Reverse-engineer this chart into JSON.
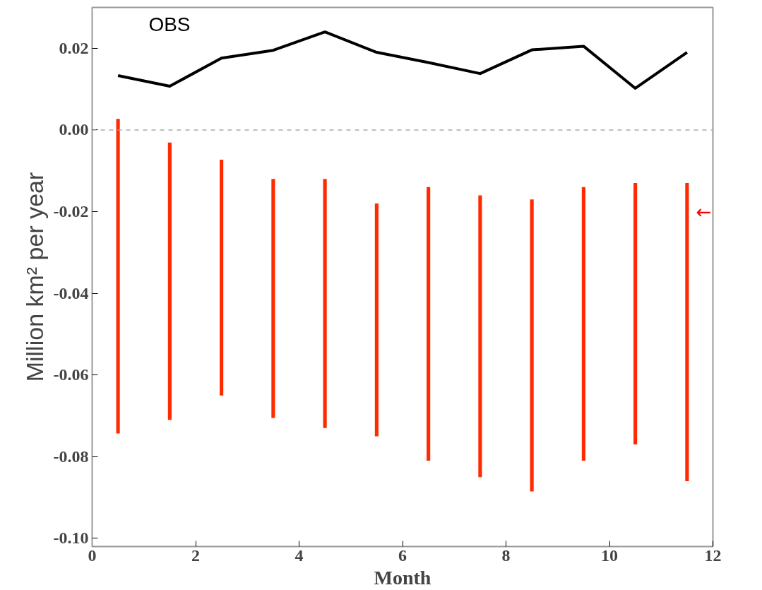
{
  "chart_data": {
    "type": "line",
    "xlabel": "Month",
    "ylabel": "Million km² per year",
    "xlim": [
      0,
      12
    ],
    "ylim": [
      -0.102,
      0.03
    ],
    "xticks": [
      0,
      2,
      4,
      6,
      8,
      10,
      12
    ],
    "yticks": [
      {
        "value": -0.1,
        "label": "-0.10"
      },
      {
        "value": -0.08,
        "label": "-0.08"
      },
      {
        "value": -0.06,
        "label": "-0.06"
      },
      {
        "value": -0.04,
        "label": "-0.04"
      },
      {
        "value": -0.02,
        "label": "-0.02"
      },
      {
        "value": 0,
        "label": "0.00"
      },
      {
        "value": 0.02,
        "label": "0.02"
      }
    ],
    "grid": false,
    "legend": false,
    "ref_lines": [
      {
        "axis": "y",
        "value": 0,
        "color": "#aaaaaa",
        "line_style": "dashed"
      }
    ],
    "annotations": [
      "←"
    ],
    "series": [
      {
        "name": "OBS",
        "color": "#000000",
        "x": [
          0.5,
          1.5,
          2.5,
          3.5,
          4.5,
          5.5,
          6.5,
          7.5,
          8.5,
          9.5,
          10.5,
          11.5
        ],
        "values": [
          0.0133,
          0.0107,
          0.0176,
          0.0195,
          0.024,
          0.019,
          0.0165,
          0.0138,
          0.0196,
          0.0205,
          0.0102,
          0.019
        ]
      },
      {
        "type": "bar",
        "color": "#ff2a00",
        "x": [
          0.5,
          1.5,
          2.5,
          3.5,
          4.5,
          5.5,
          6.5,
          7.5,
          8.5,
          9.5,
          10.5,
          11.5
        ],
        "base": [
          -0.0743,
          -0.071,
          -0.065,
          -0.0705,
          -0.073,
          -0.075,
          -0.081,
          -0.085,
          -0.0885,
          -0.081,
          -0.077,
          -0.086
        ],
        "values": [
          0.077,
          0.0679,
          0.0577,
          0.0585,
          0.061,
          0.057,
          0.067,
          0.069,
          0.0715,
          0.067,
          0.064,
          0.073
        ]
      }
    ]
  }
}
